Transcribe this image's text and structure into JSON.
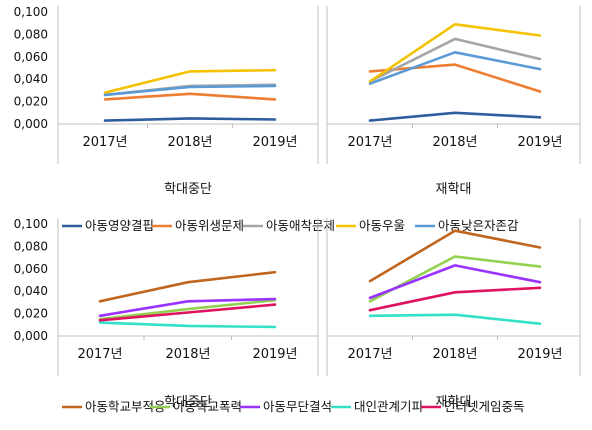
{
  "chart_data": [
    {
      "type": "line",
      "categories": [
        "2017년",
        "2018년",
        "2019년"
      ],
      "ylim": [
        0,
        0.1
      ],
      "yticks": [
        "0,100",
        "0,080",
        "0,060",
        "0,040",
        "0,020",
        "0,000"
      ],
      "groups": [
        {
          "name": "학대중단",
          "series": [
            {
              "name": "아동영양결핍",
              "values": [
                0.003,
                0.005,
                0.004
              ]
            },
            {
              "name": "아동위생문제",
              "values": [
                0.022,
                0.027,
                0.022
              ]
            },
            {
              "name": "아동애착문제",
              "values": [
                0.026,
                0.034,
                0.035
              ]
            },
            {
              "name": "아동우울",
              "values": [
                0.028,
                0.047,
                0.048
              ]
            },
            {
              "name": "아동낮은자존감",
              "values": [
                0.026,
                0.033,
                0.034
              ]
            }
          ]
        },
        {
          "name": "재학대",
          "series": [
            {
              "name": "아동영양결핍",
              "values": [
                0.003,
                0.01,
                0.006
              ]
            },
            {
              "name": "아동위생문제",
              "values": [
                0.047,
                0.053,
                0.029
              ]
            },
            {
              "name": "아동애착문제",
              "values": [
                0.038,
                0.076,
                0.058
              ]
            },
            {
              "name": "아동우울",
              "values": [
                0.038,
                0.089,
                0.079
              ]
            },
            {
              "name": "아동낮은자존감",
              "values": [
                0.036,
                0.064,
                0.049
              ]
            }
          ]
        }
      ],
      "legend": [
        {
          "name": "아동영양결핍",
          "color": "#2f5d9e"
        },
        {
          "name": "아동위생문제",
          "color": "#ed7d31"
        },
        {
          "name": "아동애착문제",
          "color": "#a5a5a5"
        },
        {
          "name": "아동우울",
          "color": "#f5c200"
        },
        {
          "name": "아동낮은자존감",
          "color": "#5b9bd5"
        }
      ],
      "legend_position": "bottom"
    },
    {
      "type": "line",
      "categories": [
        "2017년",
        "2018년",
        "2019년"
      ],
      "ylim": [
        0,
        0.1
      ],
      "yticks": [
        "0,100",
        "0,080",
        "0,060",
        "0,040",
        "0,020",
        "0,000"
      ],
      "groups": [
        {
          "name": "학대중단",
          "series": [
            {
              "name": "아동학교부적응",
              "values": [
                0.031,
                0.048,
                0.057
              ]
            },
            {
              "name": "아동학교폭력",
              "values": [
                0.015,
                0.024,
                0.032
              ]
            },
            {
              "name": "아동무단결석",
              "values": [
                0.018,
                0.031,
                0.033
              ]
            },
            {
              "name": "대인관계기피",
              "values": [
                0.012,
                0.009,
                0.008
              ]
            },
            {
              "name": "인터넷게임중독",
              "values": [
                0.014,
                0.021,
                0.028
              ]
            }
          ]
        },
        {
          "name": "재학대",
          "series": [
            {
              "name": "아동학교부적응",
              "values": [
                0.049,
                0.094,
                0.079
              ]
            },
            {
              "name": "아동학교폭력",
              "values": [
                0.031,
                0.071,
                0.062
              ]
            },
            {
              "name": "아동무단결석",
              "values": [
                0.034,
                0.063,
                0.048
              ]
            },
            {
              "name": "대인관계기피",
              "values": [
                0.018,
                0.019,
                0.011
              ]
            },
            {
              "name": "인터넷게임중독",
              "values": [
                0.023,
                0.039,
                0.043
              ]
            }
          ]
        }
      ],
      "legend": [
        {
          "name": "아동학교부적응",
          "color": "#c0651e"
        },
        {
          "name": "아동학교폭력",
          "color": "#92d050"
        },
        {
          "name": "아동무단결석",
          "color": "#9933ff"
        },
        {
          "name": "대인관계기피",
          "color": "#33e0c8"
        },
        {
          "name": "인터넷게임중독",
          "color": "#e0115f"
        }
      ],
      "legend_position": "bottom"
    }
  ]
}
